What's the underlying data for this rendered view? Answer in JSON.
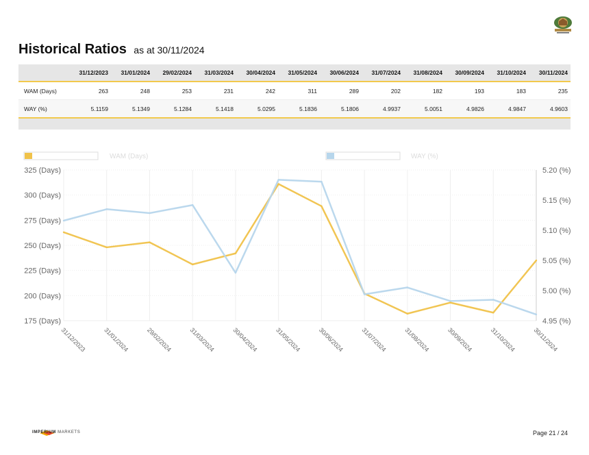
{
  "header": {
    "title": "Historical Ratios",
    "subtitle": "as at 30/11/2024"
  },
  "table": {
    "columns": [
      "31/12/2023",
      "31/01/2024",
      "29/02/2024",
      "31/03/2024",
      "30/04/2024",
      "31/05/2024",
      "30/06/2024",
      "31/07/2024",
      "31/08/2024",
      "30/09/2024",
      "31/10/2024",
      "30/11/2024"
    ],
    "rows": [
      {
        "label": "WAM (Days)",
        "values": [
          "263",
          "248",
          "253",
          "231",
          "242",
          "311",
          "289",
          "202",
          "182",
          "193",
          "183",
          "235"
        ]
      },
      {
        "label": "WAY (%)",
        "values": [
          "5.1159",
          "5.1349",
          "5.1284",
          "5.1418",
          "5.0295",
          "5.1836",
          "5.1806",
          "4.9937",
          "5.0051",
          "4.9826",
          "4.9847",
          "4.9603"
        ]
      }
    ]
  },
  "chart_data": {
    "type": "line",
    "categories": [
      "31/12/2023",
      "31/01/2024",
      "29/02/2024",
      "31/03/2024",
      "30/04/2024",
      "31/05/2024",
      "30/06/2024",
      "31/07/2024",
      "31/08/2024",
      "30/09/2024",
      "31/10/2024",
      "30/11/2024"
    ],
    "series": [
      {
        "name": "WAM (Days)",
        "axis": "left",
        "color": "#f0c24a",
        "values": [
          263,
          248,
          253,
          231,
          242,
          311,
          289,
          202,
          182,
          193,
          183,
          235
        ]
      },
      {
        "name": "WAY (%)",
        "axis": "right",
        "color": "#b7d6ec",
        "values": [
          5.1159,
          5.1349,
          5.1284,
          5.1418,
          5.0295,
          5.1836,
          5.1806,
          4.9937,
          5.0051,
          4.9826,
          4.9847,
          4.9603
        ]
      }
    ],
    "left_axis": {
      "min": 175,
      "max": 325,
      "ticks": [
        "325 (Days)",
        "300 (Days)",
        "275 (Days)",
        "250 (Days)",
        "225 (Days)",
        "200 (Days)",
        "175 (Days)"
      ]
    },
    "right_axis": {
      "min": 4.95,
      "max": 5.2,
      "ticks": [
        "5.20 (%)",
        "5.15 (%)",
        "5.10 (%)",
        "5.05 (%)",
        "5.00 (%)",
        "4.95 (%)"
      ]
    },
    "grid": true,
    "legend_placement": "top"
  },
  "footer": {
    "logo_bold": "IMPERIUM",
    "logo_text": "MARKETS",
    "page": "Page 21 / 24"
  },
  "colors": {
    "accent": "#f2c94c",
    "wam_line": "#f0c24a",
    "way_line": "#b7d6ec",
    "header_bg": "#e6e6e6"
  }
}
